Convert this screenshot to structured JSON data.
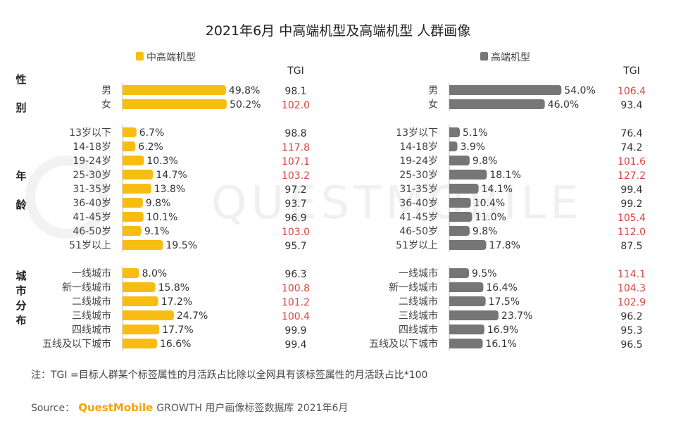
{
  "title": "2021年6月 中高端机型及高端机型 人群画像",
  "tgi_header": "TGI",
  "watermark": "QUESTMOBILE",
  "colors": {
    "mid_high": "#f8bd12",
    "high": "#767676",
    "tgi_high": "#d9443c",
    "tgi_normal": "#333333"
  },
  "sections": [
    {
      "label_lines": [
        "性",
        "别"
      ]
    },
    {
      "label_lines": [
        "年",
        "龄"
      ]
    },
    {
      "label_lines": [
        "城",
        "市",
        "分",
        "布"
      ]
    }
  ],
  "chart_data": {
    "type": "bar",
    "orientation": "horizontal",
    "title": "2021年6月 中高端机型及高端机型 人群画像",
    "groups": [
      {
        "name": "性别",
        "categories": [
          "男",
          "女"
        ]
      },
      {
        "name": "年龄",
        "categories": [
          "13岁以下",
          "14-18岁",
          "19-24岁",
          "25-30岁",
          "31-35岁",
          "36-40岁",
          "41-45岁",
          "46-50岁",
          "51岁以上"
        ]
      },
      {
        "name": "城市分布",
        "categories": [
          "一线城市",
          "新一线城市",
          "二线城市",
          "三线城市",
          "四线城市",
          "五线及以下城市"
        ]
      }
    ],
    "series": [
      {
        "name": "中高端机型",
        "values": [
          [
            49.8,
            50.2
          ],
          [
            6.7,
            6.2,
            10.3,
            14.7,
            13.8,
            9.8,
            10.1,
            9.1,
            19.5
          ],
          [
            8.0,
            15.8,
            17.2,
            24.7,
            17.7,
            16.6
          ]
        ],
        "value_labels": [
          [
            "49.8%",
            "50.2%"
          ],
          [
            "6.7%",
            "6.2%",
            "10.3%",
            "14.7%",
            "13.8%",
            "9.8%",
            "10.1%",
            "9.1%",
            "19.5%"
          ],
          [
            "8.0%",
            "15.8%",
            "17.2%",
            "24.7%",
            "17.7%",
            "16.6%"
          ]
        ],
        "tgi": [
          [
            "98.1",
            "102.0"
          ],
          [
            "98.8",
            "117.8",
            "107.1",
            "103.2",
            "97.2",
            "93.7",
            "96.9",
            "103.0",
            "95.7"
          ],
          [
            "96.3",
            "100.8",
            "101.2",
            "100.4",
            "99.9",
            "99.4"
          ]
        ]
      },
      {
        "name": "高端机型",
        "values": [
          [
            54.0,
            46.0
          ],
          [
            5.1,
            3.9,
            9.8,
            18.1,
            14.1,
            10.4,
            11.0,
            9.8,
            17.8
          ],
          [
            9.5,
            16.4,
            17.5,
            23.7,
            16.9,
            16.1
          ]
        ],
        "value_labels": [
          [
            "54.0%",
            "46.0%"
          ],
          [
            "5.1%",
            "3.9%",
            "9.8%",
            "18.1%",
            "14.1%",
            "10.4%",
            "11.0%",
            "9.8%",
            "17.8%"
          ],
          [
            "9.5%",
            "16.4%",
            "17.5%",
            "23.7%",
            "16.9%",
            "16.1%"
          ]
        ],
        "tgi": [
          [
            "106.4",
            "93.4"
          ],
          [
            "76.4",
            "74.2",
            "101.6",
            "127.2",
            "99.4",
            "99.2",
            "105.4",
            "112.0",
            "87.5"
          ],
          [
            "114.1",
            "104.3",
            "102.9",
            "96.2",
            "95.3",
            "96.5"
          ]
        ]
      }
    ],
    "xlabel": "",
    "ylabel": "",
    "unit": "%",
    "tgi_highlight_threshold": 100
  },
  "note": "注：TGI =目标人群某个标签属性的月活跃占比除以全网具有该标签属性的月活跃占比*100",
  "source": {
    "prefix": "Source：",
    "brand": "QuestMobile",
    "rest": " GROWTH 用户画像标签数据库 2021年6月"
  }
}
